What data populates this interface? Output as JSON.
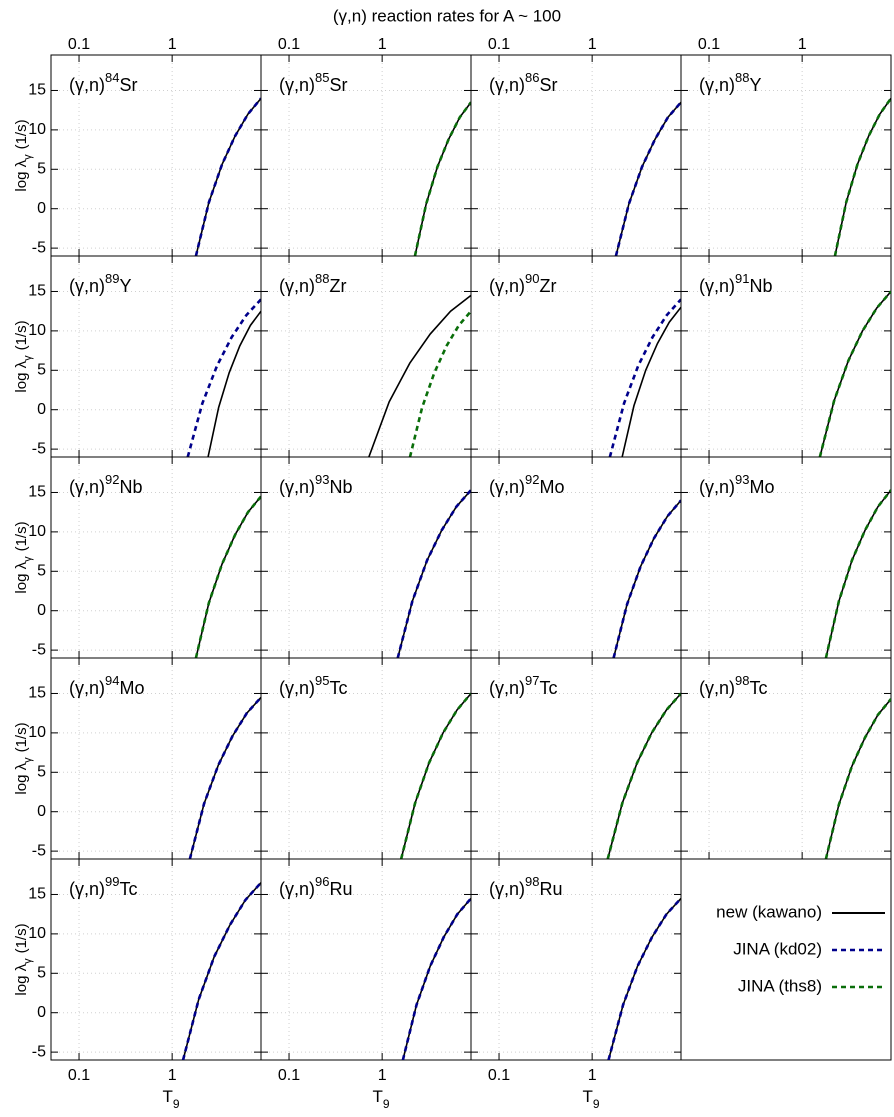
{
  "chart_data": {
    "type": "line",
    "title": "(γ,n) reaction rates for A ~ 100",
    "xlabel": "T",
    "xlabel_sub": "9",
    "ylabel": "log λ",
    "ylabel_sub": "γ",
    "ylabel_unit": "(1/s)",
    "xscale": "log",
    "xlim": [
      0.05,
      9
    ],
    "xticks": [
      0.1,
      1
    ],
    "ylim": [
      -6,
      19.5
    ],
    "yticks": [
      -5,
      0,
      5,
      10,
      15
    ],
    "grid": true,
    "series": [
      {
        "name": "new (kawano)",
        "color": "#000000",
        "dash": "none"
      },
      {
        "name": "JINA (kd02)",
        "color": "#00008b",
        "dash": "5,4"
      },
      {
        "name": "JINA (ths8)",
        "color": "#0a6e0a",
        "dash": "5,4"
      }
    ],
    "panels": [
      {
        "label": "(γ,n)",
        "mass": "84",
        "element": "Sr",
        "series": [
          {
            "x": [
              1.8,
              2.48,
              3.43,
              4.73,
              6.52,
              9
            ],
            "values": [
              -6,
              0.8,
              5.6,
              9.2,
              12,
              14
            ]
          },
          {
            "x": [
              1.8,
              2.48,
              3.43,
              4.73,
              6.52,
              9
            ],
            "values": [
              -6,
              0.8,
              5.6,
              9.2,
              12,
              14
            ]
          },
          null
        ]
      },
      {
        "label": "(γ,n)",
        "mass": "85",
        "element": "Sr",
        "series": [
          {
            "x": [
              2.25,
              2.97,
              3.92,
              5.17,
              6.82,
              9
            ],
            "values": [
              -6,
              0.6,
              5.3,
              8.8,
              11.6,
              13.5
            ]
          },
          null,
          {
            "x": [
              2.25,
              2.97,
              3.92,
              5.17,
              6.82,
              9
            ],
            "values": [
              -6,
              0.6,
              5.3,
              8.8,
              11.6,
              13.5
            ]
          }
        ]
      },
      {
        "label": "(γ,n)",
        "mass": "86",
        "element": "Sr",
        "series": [
          {
            "x": [
              1.8,
              2.48,
              3.43,
              4.73,
              6.52,
              9
            ],
            "values": [
              -6,
              0.6,
              5.3,
              8.8,
              11.6,
              13.5
            ]
          },
          {
            "x": [
              1.8,
              2.48,
              3.43,
              4.73,
              6.52,
              9
            ],
            "values": [
              -6,
              0.6,
              5.3,
              8.8,
              11.6,
              13.5
            ]
          },
          null
        ]
      },
      {
        "label": "(γ,n)",
        "mass": "88",
        "element": "Y",
        "series": [
          {
            "x": [
              2.25,
              2.97,
              3.92,
              5.17,
              6.82,
              9
            ],
            "values": [
              -6,
              0.8,
              5.6,
              9.2,
              12,
              14
            ]
          },
          null,
          {
            "x": [
              2.25,
              2.97,
              3.92,
              5.17,
              6.82,
              9
            ],
            "values": [
              -6,
              0.8,
              5.6,
              9.2,
              12,
              14
            ]
          }
        ]
      },
      {
        "label": "(γ,n)",
        "mass": "89",
        "element": "Y",
        "series": [
          {
            "x": [
              2.43,
              3.16,
              4.1,
              5.33,
              6.93,
              9
            ],
            "values": [
              -6,
              0.3,
              4.7,
              8.1,
              10.7,
              12.5
            ]
          },
          {
            "x": [
              1.47,
              2.11,
              3.04,
              4.36,
              6.27,
              9
            ],
            "values": [
              -6,
              0.8,
              5.6,
              9.2,
              12,
              14
            ]
          },
          null
        ]
      },
      {
        "label": "(γ,n)",
        "mass": "88",
        "element": "Zr",
        "series": [
          {
            "x": [
              0.72,
              1.19,
              1.98,
              3.28,
              5.43,
              9
            ],
            "values": [
              -6,
              1,
              5.9,
              9.6,
              12.5,
              14.5
            ]
          },
          null,
          {
            "x": [
              1.99,
              2.69,
              3.64,
              4.92,
              6.66,
              9
            ],
            "values": [
              -6,
              0.3,
              4.7,
              8.1,
              10.7,
              12.5
            ]
          }
        ]
      },
      {
        "label": "(γ,n)",
        "mass": "90",
        "element": "Zr",
        "series": [
          {
            "x": [
              2.1,
              2.81,
              3.76,
              5.03,
              6.73,
              9
            ],
            "values": [
              -6,
              0.5,
              5,
              8.4,
              11.1,
              13
            ]
          },
          {
            "x": [
              1.55,
              2.2,
              3.13,
              4.45,
              6.33,
              9
            ],
            "values": [
              -6,
              0.8,
              5.6,
              9.2,
              12,
              14
            ]
          },
          null
        ]
      },
      {
        "label": "(γ,n)",
        "mass": "91",
        "element": "Nb",
        "series": [
          {
            "x": [
              1.55,
              2.2,
              3.13,
              4.45,
              6.33,
              9
            ],
            "values": [
              -6,
              1.1,
              6.2,
              10,
              12.9,
              15
            ]
          },
          null,
          {
            "x": [
              1.55,
              2.2,
              3.13,
              4.45,
              6.33,
              9
            ],
            "values": [
              -6,
              1.1,
              6.2,
              10,
              12.9,
              15
            ]
          }
        ]
      },
      {
        "label": "(γ,n)",
        "mass": "92",
        "element": "Nb",
        "series": [
          {
            "x": [
              1.8,
              2.48,
              3.43,
              4.73,
              6.52,
              9
            ],
            "values": [
              -6,
              1,
              5.9,
              9.6,
              12.5,
              14.5
            ]
          },
          null,
          {
            "x": [
              1.8,
              2.48,
              3.43,
              4.73,
              6.52,
              9
            ],
            "values": [
              -6,
              1,
              5.9,
              9.6,
              12.5,
              14.5
            ]
          }
        ]
      },
      {
        "label": "(γ,n)",
        "mass": "93",
        "element": "Nb",
        "series": [
          {
            "x": [
              1.47,
              2.11,
              3.04,
              4.36,
              6.27,
              9
            ],
            "values": [
              -6,
              1.2,
              6.4,
              10.2,
              13.2,
              15.3
            ]
          },
          {
            "x": [
              1.47,
              2.11,
              3.04,
              4.36,
              6.27,
              9
            ],
            "values": [
              -6,
              1.2,
              6.4,
              10.2,
              13.2,
              15.3
            ]
          },
          null
        ]
      },
      {
        "label": "(γ,n)",
        "mass": "92",
        "element": "Mo",
        "series": [
          {
            "x": [
              1.7,
              2.37,
              3.31,
              4.62,
              6.45,
              9
            ],
            "values": [
              -6,
              0.8,
              5.6,
              9.2,
              12,
              14
            ]
          },
          {
            "x": [
              1.7,
              2.37,
              3.31,
              4.62,
              6.45,
              9
            ],
            "values": [
              -6,
              0.8,
              5.6,
              9.2,
              12,
              14
            ]
          },
          null
        ]
      },
      {
        "label": "(γ,n)",
        "mass": "93",
        "element": "Mo",
        "series": [
          {
            "x": [
              1.8,
              2.48,
              3.43,
              4.73,
              6.52,
              9
            ],
            "values": [
              -6,
              1.2,
              6.4,
              10.2,
              13.2,
              15.3
            ]
          },
          null,
          {
            "x": [
              1.8,
              2.48,
              3.43,
              4.73,
              6.52,
              9
            ],
            "values": [
              -6,
              1.2,
              6.4,
              10.2,
              13.2,
              15.3
            ]
          }
        ]
      },
      {
        "label": "(γ,n)",
        "mass": "94",
        "element": "Mo",
        "series": [
          {
            "x": [
              1.55,
              2.2,
              3.13,
              4.45,
              6.33,
              9
            ],
            "values": [
              -6,
              1,
              5.9,
              9.6,
              12.5,
              14.5
            ]
          },
          {
            "x": [
              1.55,
              2.2,
              3.13,
              4.45,
              6.33,
              9
            ],
            "values": [
              -6,
              1,
              5.9,
              9.6,
              12.5,
              14.5
            ]
          },
          null
        ]
      },
      {
        "label": "(γ,n)",
        "mass": "95",
        "element": "Tc",
        "series": [
          {
            "x": [
              1.6,
              2.26,
              3.19,
              4.51,
              6.37,
              9
            ],
            "values": [
              -6,
              1.1,
              6.2,
              10,
              12.9,
              15
            ]
          },
          null,
          {
            "x": [
              1.6,
              2.26,
              3.19,
              4.51,
              6.37,
              9
            ],
            "values": [
              -6,
              1.1,
              6.2,
              10,
              12.9,
              15
            ]
          }
        ]
      },
      {
        "label": "(γ,n)",
        "mass": "97",
        "element": "Tc",
        "series": [
          {
            "x": [
              1.47,
              2.11,
              3.04,
              4.36,
              6.27,
              9
            ],
            "values": [
              -6,
              1.1,
              6.2,
              10,
              12.9,
              15
            ]
          },
          null,
          {
            "x": [
              1.47,
              2.11,
              3.04,
              4.36,
              6.27,
              9
            ],
            "values": [
              -6,
              1.1,
              6.2,
              10,
              12.9,
              15
            ]
          }
        ]
      },
      {
        "label": "(γ,n)",
        "mass": "98",
        "element": "Tc",
        "series": [
          {
            "x": [
              1.8,
              2.48,
              3.43,
              4.73,
              6.52,
              9
            ],
            "values": [
              -6,
              0.9,
              5.8,
              9.4,
              12.3,
              14.3
            ]
          },
          null,
          {
            "x": [
              1.8,
              2.48,
              3.43,
              4.73,
              6.52,
              9
            ],
            "values": [
              -6,
              0.9,
              5.8,
              9.4,
              12.3,
              14.3
            ]
          }
        ]
      },
      {
        "label": "(γ,n)",
        "mass": "99",
        "element": "Tc",
        "series": [
          {
            "x": [
              1.31,
              1.93,
              2.83,
              4.16,
              6.12,
              9
            ],
            "values": [
              -6,
              1.7,
              7.1,
              11.1,
              14.3,
              16.5
            ]
          },
          {
            "x": [
              1.31,
              1.93,
              2.83,
              4.16,
              6.12,
              9
            ],
            "values": [
              -6,
              1.7,
              7.1,
              11.1,
              14.3,
              16.5
            ]
          },
          null
        ]
      },
      {
        "label": "(γ,n)",
        "mass": "96",
        "element": "Ru",
        "series": [
          {
            "x": [
              1.67,
              2.34,
              3.28,
              4.59,
              6.42,
              9
            ],
            "values": [
              -6,
              1,
              5.9,
              9.6,
              12.5,
              14.5
            ]
          },
          {
            "x": [
              1.67,
              2.34,
              3.28,
              4.59,
              6.42,
              9
            ],
            "values": [
              -6,
              1,
              5.9,
              9.6,
              12.5,
              14.5
            ]
          },
          null
        ]
      },
      {
        "label": "(γ,n)",
        "mass": "98",
        "element": "Ru",
        "series": [
          {
            "x": [
              1.5,
              2.15,
              3.07,
              4.4,
              6.29,
              9
            ],
            "values": [
              -6,
              1,
              5.9,
              9.6,
              12.5,
              14.5
            ]
          },
          {
            "x": [
              1.5,
              2.15,
              3.07,
              4.4,
              6.29,
              9
            ],
            "values": [
              -6,
              1,
              5.9,
              9.6,
              12.5,
              14.5
            ]
          },
          null
        ]
      }
    ]
  }
}
